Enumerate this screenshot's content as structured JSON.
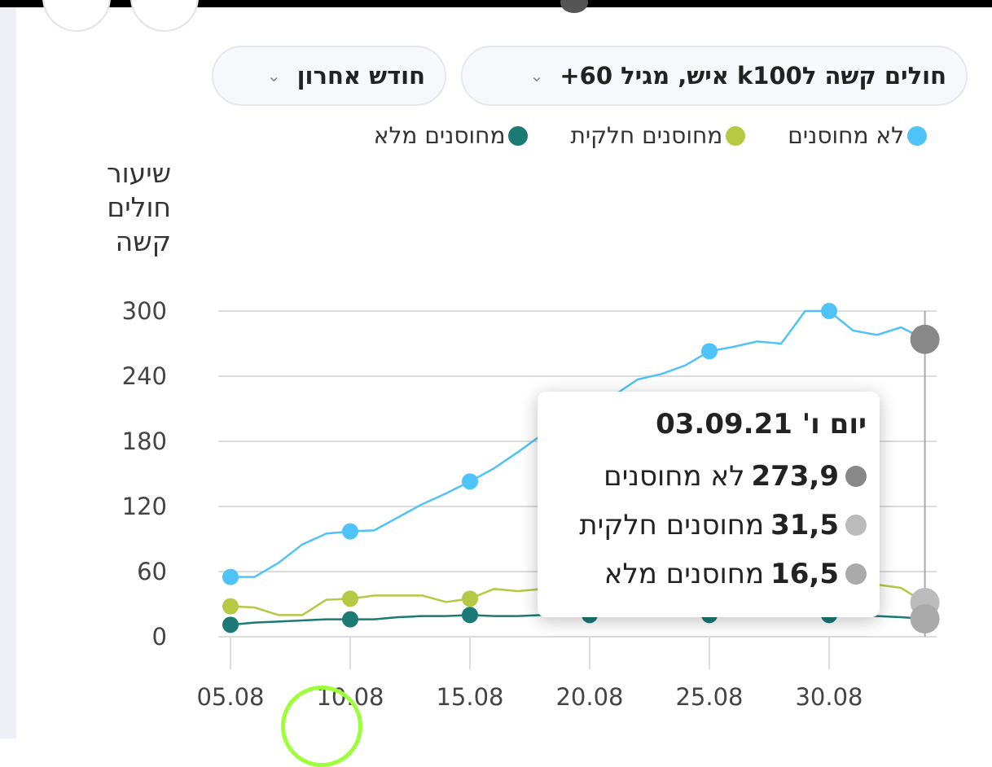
{
  "filters": {
    "metric": "חולים קשה לk100 איש, מגיל 60+",
    "period": "חודש אחרון"
  },
  "tooltip": {
    "title": "יום ו' 03.09.21",
    "rows": [
      {
        "value": "273,9",
        "label": "לא מחוסנים"
      },
      {
        "value": "31,5",
        "label": "מחוסנים חלקית"
      },
      {
        "value": "16,5",
        "label": "מחוסנים מלא"
      }
    ]
  },
  "chart_data": {
    "type": "line",
    "ylabel": "שיעור חולים קשה",
    "ylim": [
      0,
      300
    ],
    "yticks": [
      "300",
      "240",
      "180",
      "120",
      "60",
      "0"
    ],
    "xticks": [
      "05.08",
      "10.08",
      "15.08",
      "20.08",
      "25.08",
      "30.08"
    ],
    "x_start": "05.08",
    "x_end": "03.09",
    "series": [
      {
        "name": "לא מחוסנים",
        "color": "#4fc3f7",
        "values": [
          55,
          55,
          68,
          85,
          95,
          97,
          98,
          110,
          122,
          132,
          143,
          155,
          170,
          186,
          200,
          212,
          222,
          237,
          242,
          250,
          263,
          267,
          272,
          270,
          300,
          300,
          282,
          278,
          285,
          273.9
        ]
      },
      {
        "name": "מחוסנים חלקית",
        "color": "#b5c944",
        "values": [
          28,
          27,
          20,
          20,
          34,
          35,
          38,
          38,
          38,
          32,
          35,
          44,
          42,
          44,
          45,
          45,
          45,
          46,
          45,
          45,
          45,
          46,
          45,
          44,
          45,
          45,
          50,
          48,
          45,
          31.5
        ]
      },
      {
        "name": "מחוסנים מלא",
        "color": "#1b7a73",
        "values": [
          11,
          13,
          14,
          15,
          16,
          16,
          16,
          18,
          19,
          19,
          20,
          19,
          19,
          20,
          20,
          20,
          20,
          20,
          20,
          20,
          20,
          20,
          20,
          20,
          20,
          20,
          19,
          19,
          18,
          16.5
        ]
      }
    ],
    "grid": true,
    "legend": "top"
  }
}
